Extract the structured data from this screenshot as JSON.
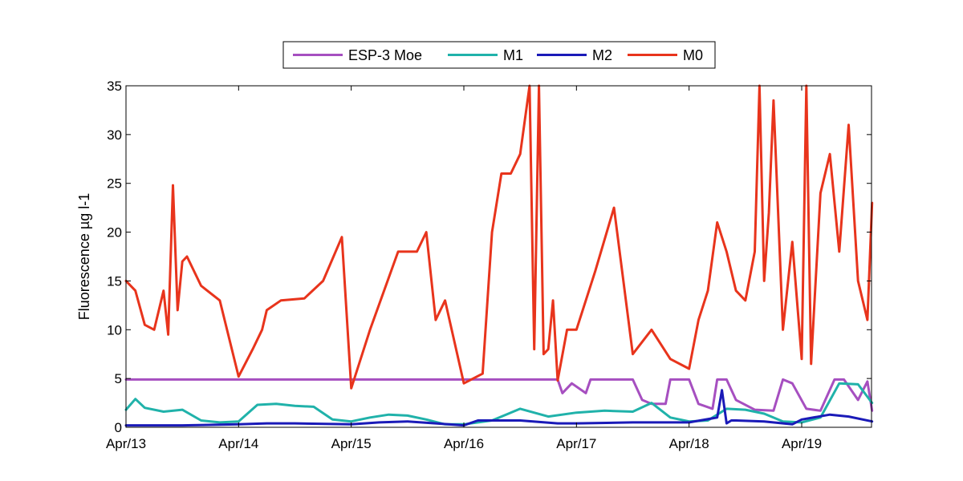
{
  "chart_data": {
    "type": "line",
    "title": "",
    "xlabel": "",
    "ylabel": "Fluorescence µg l-1",
    "xlim": [
      "Apr/13",
      "Apr/19 + 0.62 day"
    ],
    "ylim": [
      0,
      35
    ],
    "grid": false,
    "legend_position": "top-center",
    "x_tick_labels": [
      "Apr/13",
      "Apr/14",
      "Apr/15",
      "Apr/16",
      "Apr/17",
      "Apr/18",
      "Apr/19"
    ],
    "y_tick_labels": [
      "0",
      "5",
      "10",
      "15",
      "20",
      "25",
      "30",
      "35"
    ],
    "series": [
      {
        "name": "ESP-3 Moe",
        "color": "#a64fc0",
        "x": [
          "Apr/13 00:00",
          "Apr/13 12:00",
          "Apr/14 00:00",
          "Apr/14 12:00",
          "Apr/15 00:00",
          "Apr/15 12:00",
          "Apr/16 00:00",
          "Apr/16 12:00",
          "Apr/16 20:00",
          "Apr/16 21:00",
          "Apr/16 23:00",
          "Apr/17 02:00",
          "Apr/17 03:00",
          "Apr/17 12:00",
          "Apr/17 14:00",
          "Apr/17 16:00",
          "Apr/17 19:00",
          "Apr/17 20:00",
          "Apr/17 22:00",
          "Apr/18 00:00",
          "Apr/18 02:00",
          "Apr/18 05:00",
          "Apr/18 06:00",
          "Apr/18 08:00",
          "Apr/18 10:00",
          "Apr/18 14:00",
          "Apr/18 18:00",
          "Apr/18 20:00",
          "Apr/18 22:00",
          "Apr/19 01:00",
          "Apr/19 04:00",
          "Apr/19 07:00",
          "Apr/19 09:00",
          "Apr/19 12:00",
          "Apr/19 14:00",
          "Apr/19 15:00"
        ],
        "y": [
          4.9,
          4.9,
          4.9,
          4.9,
          4.9,
          4.9,
          4.9,
          4.9,
          4.9,
          3.5,
          4.5,
          3.5,
          4.9,
          4.9,
          2.8,
          2.4,
          2.4,
          4.9,
          4.9,
          4.9,
          2.4,
          1.9,
          4.9,
          4.9,
          2.8,
          1.8,
          1.7,
          4.9,
          4.5,
          1.9,
          1.7,
          4.9,
          4.9,
          2.8,
          4.7,
          1.7
        ]
      },
      {
        "name": "M1",
        "color": "#20b2aa",
        "x": [
          "Apr/13 00:00",
          "Apr/13 02:00",
          "Apr/13 04:00",
          "Apr/13 08:00",
          "Apr/13 12:00",
          "Apr/13 16:00",
          "Apr/13 20:00",
          "Apr/14 00:00",
          "Apr/14 04:00",
          "Apr/14 08:00",
          "Apr/14 12:00",
          "Apr/14 16:00",
          "Apr/14 20:00",
          "Apr/15 00:00",
          "Apr/15 04:00",
          "Apr/15 08:00",
          "Apr/15 12:00",
          "Apr/15 16:00",
          "Apr/15 20:00",
          "Apr/16 00:00",
          "Apr/16 06:00",
          "Apr/16 12:00",
          "Apr/16 18:00",
          "Apr/17 00:00",
          "Apr/17 06:00",
          "Apr/17 12:00",
          "Apr/17 16:00",
          "Apr/17 20:00",
          "Apr/18 00:00",
          "Apr/18 04:00",
          "Apr/18 08:00",
          "Apr/18 12:00",
          "Apr/18 16:00",
          "Apr/18 20:00",
          "Apr/19 00:00",
          "Apr/19 04:00",
          "Apr/19 08:00",
          "Apr/19 12:00",
          "Apr/19 15:00"
        ],
        "y": [
          1.8,
          2.9,
          2.0,
          1.6,
          1.8,
          0.7,
          0.5,
          0.6,
          2.3,
          2.4,
          2.2,
          2.1,
          0.8,
          0.6,
          1.0,
          1.3,
          1.2,
          0.8,
          0.3,
          0.3,
          0.7,
          1.9,
          1.1,
          1.5,
          1.7,
          1.6,
          2.5,
          1.0,
          0.6,
          0.7,
          1.9,
          1.8,
          1.4,
          0.6,
          0.5,
          1.0,
          4.5,
          4.4,
          2.5
        ]
      },
      {
        "name": "M2",
        "color": "#1a1ab8",
        "x": [
          "Apr/13 00:00",
          "Apr/13 12:00",
          "Apr/14 00:00",
          "Apr/14 06:00",
          "Apr/14 12:00",
          "Apr/15 00:00",
          "Apr/15 06:00",
          "Apr/15 12:00",
          "Apr/15 18:00",
          "Apr/16 00:00",
          "Apr/16 03:00",
          "Apr/16 12:00",
          "Apr/16 20:00",
          "Apr/17 00:00",
          "Apr/17 12:00",
          "Apr/18 00:00",
          "Apr/18 06:00",
          "Apr/18 07:00",
          "Apr/18 08:00",
          "Apr/18 09:00",
          "Apr/18 10:00",
          "Apr/18 16:00",
          "Apr/18 22:00",
          "Apr/19 00:00",
          "Apr/19 06:00",
          "Apr/19 10:00",
          "Apr/19 15:00"
        ],
        "y": [
          0.2,
          0.2,
          0.3,
          0.4,
          0.4,
          0.3,
          0.5,
          0.6,
          0.4,
          0.2,
          0.7,
          0.7,
          0.4,
          0.4,
          0.5,
          0.5,
          1.0,
          3.8,
          0.4,
          0.7,
          0.7,
          0.6,
          0.3,
          0.8,
          1.3,
          1.1,
          0.6
        ]
      },
      {
        "name": "M0",
        "color": "#e8341c",
        "x": [
          "Apr/13 00:00",
          "Apr/13 02:00",
          "Apr/13 04:00",
          "Apr/13 06:00",
          "Apr/13 08:00",
          "Apr/13 09:00",
          "Apr/13 10:00",
          "Apr/13 11:00",
          "Apr/13 12:00",
          "Apr/13 13:00",
          "Apr/13 16:00",
          "Apr/13 20:00",
          "Apr/14 00:00",
          "Apr/14 03:00",
          "Apr/14 05:00",
          "Apr/14 06:00",
          "Apr/14 09:00",
          "Apr/14 14:00",
          "Apr/14 18:00",
          "Apr/14 22:00",
          "Apr/15 00:00",
          "Apr/15 04:00",
          "Apr/15 10:00",
          "Apr/15 14:00",
          "Apr/15 16:00",
          "Apr/15 18:00",
          "Apr/15 20:00",
          "Apr/16 00:00",
          "Apr/16 04:00",
          "Apr/16 06:00",
          "Apr/16 08:00",
          "Apr/16 10:00",
          "Apr/16 12:00",
          "Apr/16 14:00",
          "Apr/16 15:00",
          "Apr/16 16:00",
          "Apr/16 17:00",
          "Apr/16 18:00",
          "Apr/16 19:00",
          "Apr/16 20:00",
          "Apr/16 22:00",
          "Apr/17 00:00",
          "Apr/17 04:00",
          "Apr/17 08:00",
          "Apr/17 12:00",
          "Apr/17 16:00",
          "Apr/17 20:00",
          "Apr/18 00:00",
          "Apr/18 02:00",
          "Apr/18 04:00",
          "Apr/18 06:00",
          "Apr/18 08:00",
          "Apr/18 10:00",
          "Apr/18 12:00",
          "Apr/18 14:00",
          "Apr/18 15:00",
          "Apr/18 16:00",
          "Apr/18 17:00",
          "Apr/18 18:00",
          "Apr/18 20:00",
          "Apr/18 22:00",
          "Apr/19 00:00",
          "Apr/19 01:00",
          "Apr/19 02:00",
          "Apr/19 04:00",
          "Apr/19 06:00",
          "Apr/19 08:00",
          "Apr/19 10:00",
          "Apr/19 12:00",
          "Apr/19 14:00",
          "Apr/19 15:00"
        ],
        "y": [
          15.0,
          14.0,
          10.5,
          10.0,
          14.0,
          9.5,
          24.8,
          12.0,
          17.0,
          17.5,
          14.5,
          13.0,
          5.2,
          8.0,
          10.0,
          12.0,
          13.0,
          13.2,
          15.0,
          19.5,
          4.0,
          10.0,
          18.0,
          18.0,
          20.0,
          11.0,
          13.0,
          4.5,
          5.5,
          20.0,
          26.0,
          26.0,
          28.0,
          35.0,
          8.0,
          35.0,
          7.5,
          8.0,
          13.0,
          4.8,
          10.0,
          10.0,
          16.0,
          22.5,
          7.5,
          10.0,
          7.0,
          6.0,
          11.0,
          14.0,
          21.0,
          18.0,
          14.0,
          13.0,
          18.0,
          35.0,
          15.0,
          22.0,
          33.5,
          10.0,
          19.0,
          7.0,
          35.0,
          6.5,
          24.0,
          28.0,
          18.0,
          31.0,
          15.0,
          11.0,
          23.0
        ]
      }
    ]
  }
}
